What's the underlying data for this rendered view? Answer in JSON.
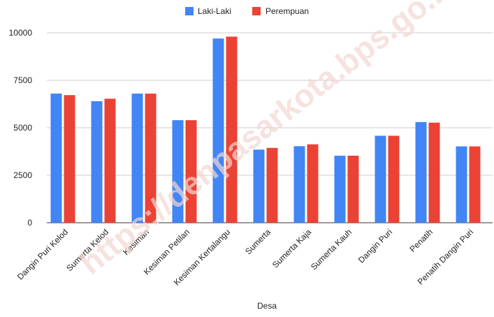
{
  "watermark": "https://denpasarkota.bps.go.id",
  "chart_data": {
    "type": "bar",
    "xlabel": "Desa",
    "ylabel": "",
    "ylim": [
      0,
      10000
    ],
    "yticks": [
      "0",
      "2500",
      "5000",
      "7500",
      "10000"
    ],
    "grid": true,
    "legend_position": "top",
    "categories": [
      "Dangin Puri Kelod",
      "Sumerta Kelod",
      "Kesiman",
      "Kesiman Petilan",
      "Kesiman Kertalangu",
      "Sumerta",
      "Sumerta Kaja",
      "Sumerta Kauh",
      "Dangin Puri",
      "Penatih",
      "Penatih Dangin Puri"
    ],
    "series": [
      {
        "name": "Laki-Laki",
        "color": "#4285f4",
        "values": [
          6800,
          6400,
          6800,
          5400,
          9700,
          3850,
          4030,
          3530,
          4580,
          5300,
          4020
        ]
      },
      {
        "name": "Perempuan",
        "color": "#ea4335",
        "values": [
          6720,
          6530,
          6800,
          5400,
          9800,
          3940,
          4130,
          3530,
          4580,
          5270,
          4020
        ]
      }
    ]
  }
}
